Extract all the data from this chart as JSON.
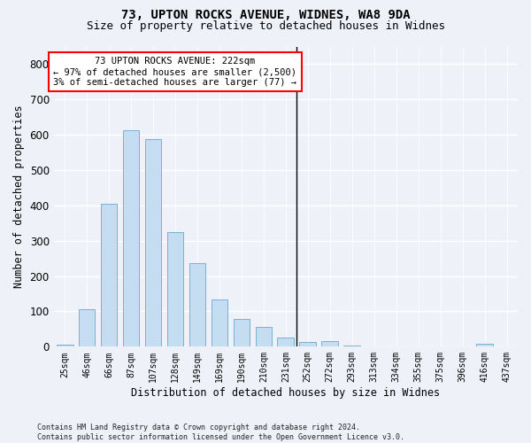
{
  "title1": "73, UPTON ROCKS AVENUE, WIDNES, WA8 9DA",
  "title2": "Size of property relative to detached houses in Widnes",
  "xlabel": "Distribution of detached houses by size in Widnes",
  "ylabel": "Number of detached properties",
  "bins": [
    "25sqm",
    "46sqm",
    "66sqm",
    "87sqm",
    "107sqm",
    "128sqm",
    "149sqm",
    "169sqm",
    "190sqm",
    "210sqm",
    "231sqm",
    "252sqm",
    "272sqm",
    "293sqm",
    "313sqm",
    "334sqm",
    "355sqm",
    "375sqm",
    "396sqm",
    "416sqm",
    "437sqm"
  ],
  "values": [
    7,
    107,
    405,
    613,
    587,
    325,
    237,
    133,
    78,
    57,
    25,
    13,
    15,
    4,
    2,
    0,
    0,
    0,
    0,
    8,
    0
  ],
  "bar_color": "#c5ddf0",
  "bar_edge_color": "#7ab0d4",
  "vline_x_index": 10.5,
  "vline_color": "black",
  "annotation_text": "73 UPTON ROCKS AVENUE: 222sqm\n← 97% of detached houses are smaller (2,500)\n3% of semi-detached houses are larger (77) →",
  "annotation_box_color": "white",
  "annotation_box_edge_color": "red",
  "footer": "Contains HM Land Registry data © Crown copyright and database right 2024.\nContains public sector information licensed under the Open Government Licence v3.0.",
  "bg_color": "#eef2f8",
  "grid_color": "white",
  "ylim": [
    0,
    850
  ],
  "title_fontsize": 10,
  "subtitle_fontsize": 9,
  "tick_fontsize": 7,
  "ylabel_fontsize": 8.5,
  "xlabel_fontsize": 8.5,
  "footer_fontsize": 6
}
